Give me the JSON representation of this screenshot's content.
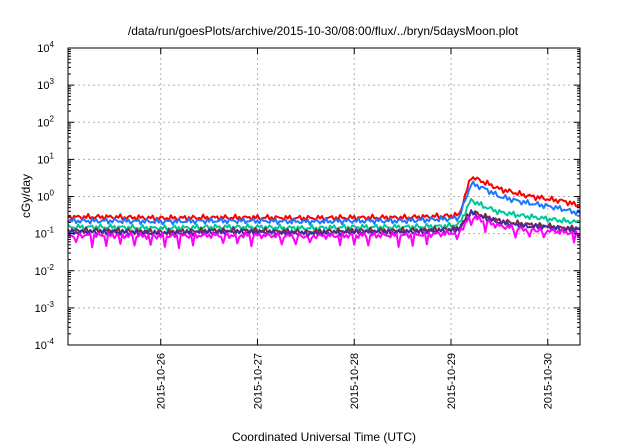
{
  "chart_data": {
    "type": "line",
    "title": "/data/run/goesPlots/archive/2015-10-30/08:00/flux/../bryn/5daysMoon.plot",
    "xlabel": "Coordinated Universal Time (UTC)",
    "ylabel": "cGy/day",
    "yscale": "log",
    "ylim": [
      0.0001,
      10000
    ],
    "xlim": [
      "2015-10-25 01:00",
      "2015-10-30 08:00"
    ],
    "x_ticks": [
      "2015-10-26",
      "2015-10-27",
      "2015-10-28",
      "2015-10-29",
      "2015-10-30"
    ],
    "y_ticks": [
      {
        "base": "10",
        "exp": "4"
      },
      {
        "base": "10",
        "exp": "3"
      },
      {
        "base": "10",
        "exp": "2"
      },
      {
        "base": "10",
        "exp": "1"
      },
      {
        "base": "10",
        "exp": "0"
      },
      {
        "base": "10",
        "exp": "-1"
      },
      {
        "base": "10",
        "exp": "-2"
      },
      {
        "base": "10",
        "exp": "-3"
      },
      {
        "base": "10",
        "exp": "-4"
      }
    ],
    "grid": true,
    "legend": "none",
    "x": [
      "2015-10-25 01:00",
      "2015-10-25 12:00",
      "2015-10-26 00:00",
      "2015-10-26 12:00",
      "2015-10-27 00:00",
      "2015-10-27 12:00",
      "2015-10-28 00:00",
      "2015-10-28 12:00",
      "2015-10-28 23:00",
      "2015-10-29 02:00",
      "2015-10-29 05:00",
      "2015-10-29 08:00",
      "2015-10-29 12:00",
      "2015-10-29 18:00",
      "2015-10-30 00:00",
      "2015-10-30 04:00",
      "2015-10-30 08:00"
    ],
    "series": [
      {
        "color": "#ff0000",
        "values": [
          0.28,
          0.28,
          0.26,
          0.27,
          0.27,
          0.26,
          0.27,
          0.27,
          0.3,
          0.32,
          3.4,
          2.5,
          1.6,
          1.1,
          0.85,
          0.75,
          0.55
        ]
      },
      {
        "color": "#1e78ff",
        "values": [
          0.22,
          0.22,
          0.21,
          0.22,
          0.22,
          0.21,
          0.22,
          0.22,
          0.25,
          0.27,
          2.2,
          1.7,
          1.0,
          0.7,
          0.55,
          0.45,
          0.35
        ]
      },
      {
        "color": "#00c896",
        "values": [
          0.15,
          0.15,
          0.14,
          0.15,
          0.15,
          0.14,
          0.15,
          0.15,
          0.16,
          0.18,
          0.8,
          0.55,
          0.38,
          0.3,
          0.25,
          0.22,
          0.2
        ]
      },
      {
        "color": "#7a2a3a",
        "values": [
          0.12,
          0.12,
          0.11,
          0.12,
          0.12,
          0.11,
          0.12,
          0.12,
          0.13,
          0.14,
          0.4,
          0.3,
          0.22,
          0.18,
          0.16,
          0.14,
          0.14
        ]
      },
      {
        "color": "#4a2aa0",
        "values": [
          0.11,
          0.11,
          0.1,
          0.11,
          0.11,
          0.1,
          0.11,
          0.11,
          0.12,
          0.13,
          0.36,
          0.27,
          0.2,
          0.16,
          0.15,
          0.13,
          0.13
        ]
      },
      {
        "color": "#ff00ff",
        "values": [
          0.09,
          0.09,
          0.085,
          0.09,
          0.09,
          0.085,
          0.09,
          0.09,
          0.1,
          0.11,
          0.3,
          0.22,
          0.16,
          0.13,
          0.12,
          0.11,
          0.1
        ]
      }
    ]
  }
}
